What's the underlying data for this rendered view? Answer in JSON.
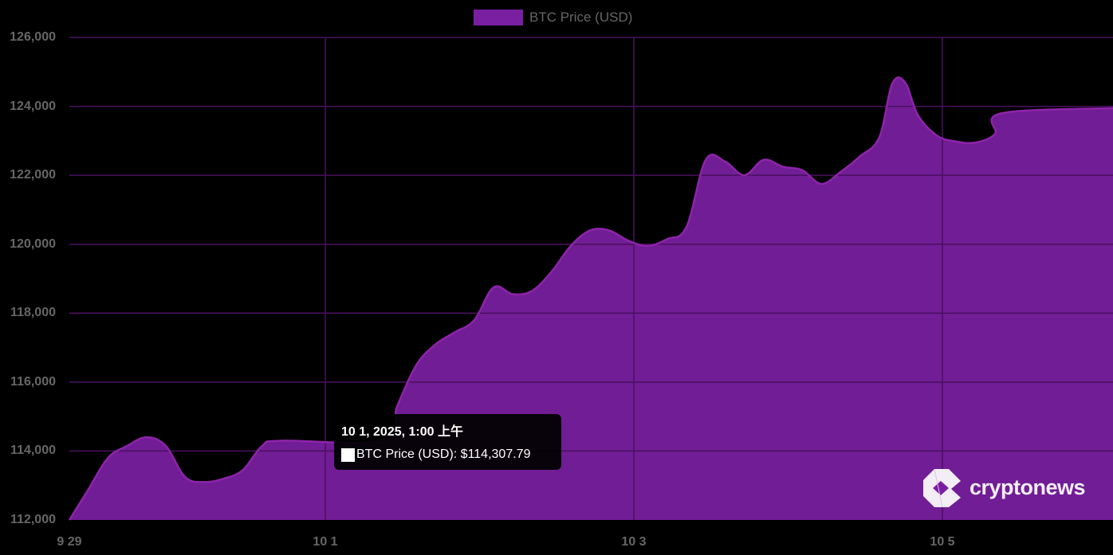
{
  "legend": {
    "label": "BTC Price (USD)",
    "color": "#7b1fa2"
  },
  "colors": {
    "fill": "#7b1fa2",
    "line": "#8e24aa",
    "grid": "#4a1060",
    "background": "#000000",
    "tick": "#666666"
  },
  "tooltip": {
    "title": "10 1, 2025, 1:00 上午",
    "body": "BTC Price (USD): $114,307.79"
  },
  "brand": {
    "name": "cryptonews"
  },
  "chart_data": {
    "type": "area",
    "title": "",
    "legend": [
      "BTC Price (USD)"
    ],
    "xlabel": "",
    "ylabel": "",
    "ylim": [
      112000,
      126000
    ],
    "y_ticks": [
      "112,000",
      "114,000",
      "116,000",
      "118,000",
      "120,000",
      "122,000",
      "124,000",
      "126,000"
    ],
    "x_ticks": [
      "9 29",
      "10 1",
      "10 3",
      "10 5"
    ],
    "grid": true,
    "legend_position": "top",
    "series": [
      {
        "name": "BTC Price (USD)",
        "points": [
          {
            "x": "9 29 00:00",
            "y": 112000
          },
          {
            "x": "9 29 03:00",
            "y": 112900
          },
          {
            "x": "9 29 06:00",
            "y": 113800
          },
          {
            "x": "9 29 09:00",
            "y": 114150
          },
          {
            "x": "9 29 12:00",
            "y": 114400
          },
          {
            "x": "9 29 15:00",
            "y": 114150
          },
          {
            "x": "9 29 18:00",
            "y": 113250
          },
          {
            "x": "9 29 21:00",
            "y": 113100
          },
          {
            "x": "9 30 00:00",
            "y": 113200
          },
          {
            "x": "9 30 03:00",
            "y": 113450
          },
          {
            "x": "9 30 06:00",
            "y": 114150
          },
          {
            "x": "9 30 09:00",
            "y": 114300
          },
          {
            "x": "10 1 01:00",
            "y": 114307.79
          },
          {
            "x": "10 1 03:00",
            "y": 115300
          },
          {
            "x": "10 1 06:00",
            "y": 116500
          },
          {
            "x": "10 1 09:00",
            "y": 117100
          },
          {
            "x": "10 1 12:00",
            "y": 117450
          },
          {
            "x": "10 1 15:00",
            "y": 117800
          },
          {
            "x": "10 1 18:00",
            "y": 118750
          },
          {
            "x": "10 1 21:00",
            "y": 118550
          },
          {
            "x": "10 2 00:00",
            "y": 118650
          },
          {
            "x": "10 2 03:00",
            "y": 119200
          },
          {
            "x": "10 2 06:00",
            "y": 119950
          },
          {
            "x": "10 2 09:00",
            "y": 120400
          },
          {
            "x": "10 2 12:00",
            "y": 120400
          },
          {
            "x": "10 2 15:00",
            "y": 120100
          },
          {
            "x": "10 2 18:00",
            "y": 119950
          },
          {
            "x": "10 2 21:00",
            "y": 120150
          },
          {
            "x": "10 3 00:00",
            "y": 120500
          },
          {
            "x": "10 3 03:00",
            "y": 122450
          },
          {
            "x": "10 3 06:00",
            "y": 122400
          },
          {
            "x": "10 3 09:00",
            "y": 122000
          },
          {
            "x": "10 3 12:00",
            "y": 122450
          },
          {
            "x": "10 3 15:00",
            "y": 122250
          },
          {
            "x": "10 3 18:00",
            "y": 122150
          },
          {
            "x": "10 3 21:00",
            "y": 121750
          },
          {
            "x": "10 4 00:00",
            "y": 122100
          },
          {
            "x": "10 4 03:00",
            "y": 122550
          },
          {
            "x": "10 4 06:00",
            "y": 123100
          },
          {
            "x": "10 4 08:00",
            "y": 124650
          },
          {
            "x": "10 4 10:00",
            "y": 124700
          },
          {
            "x": "10 4 12:00",
            "y": 123750
          },
          {
            "x": "10 4 15:00",
            "y": 123150
          },
          {
            "x": "10 4 18:00",
            "y": 122980
          },
          {
            "x": "10 4 21:00",
            "y": 122950
          },
          {
            "x": "10 5 00:00",
            "y": 123200
          },
          {
            "x": "10 5 01:00",
            "y": 123800
          },
          {
            "x": "10 5 04:00",
            "y": 123950
          }
        ]
      }
    ]
  }
}
